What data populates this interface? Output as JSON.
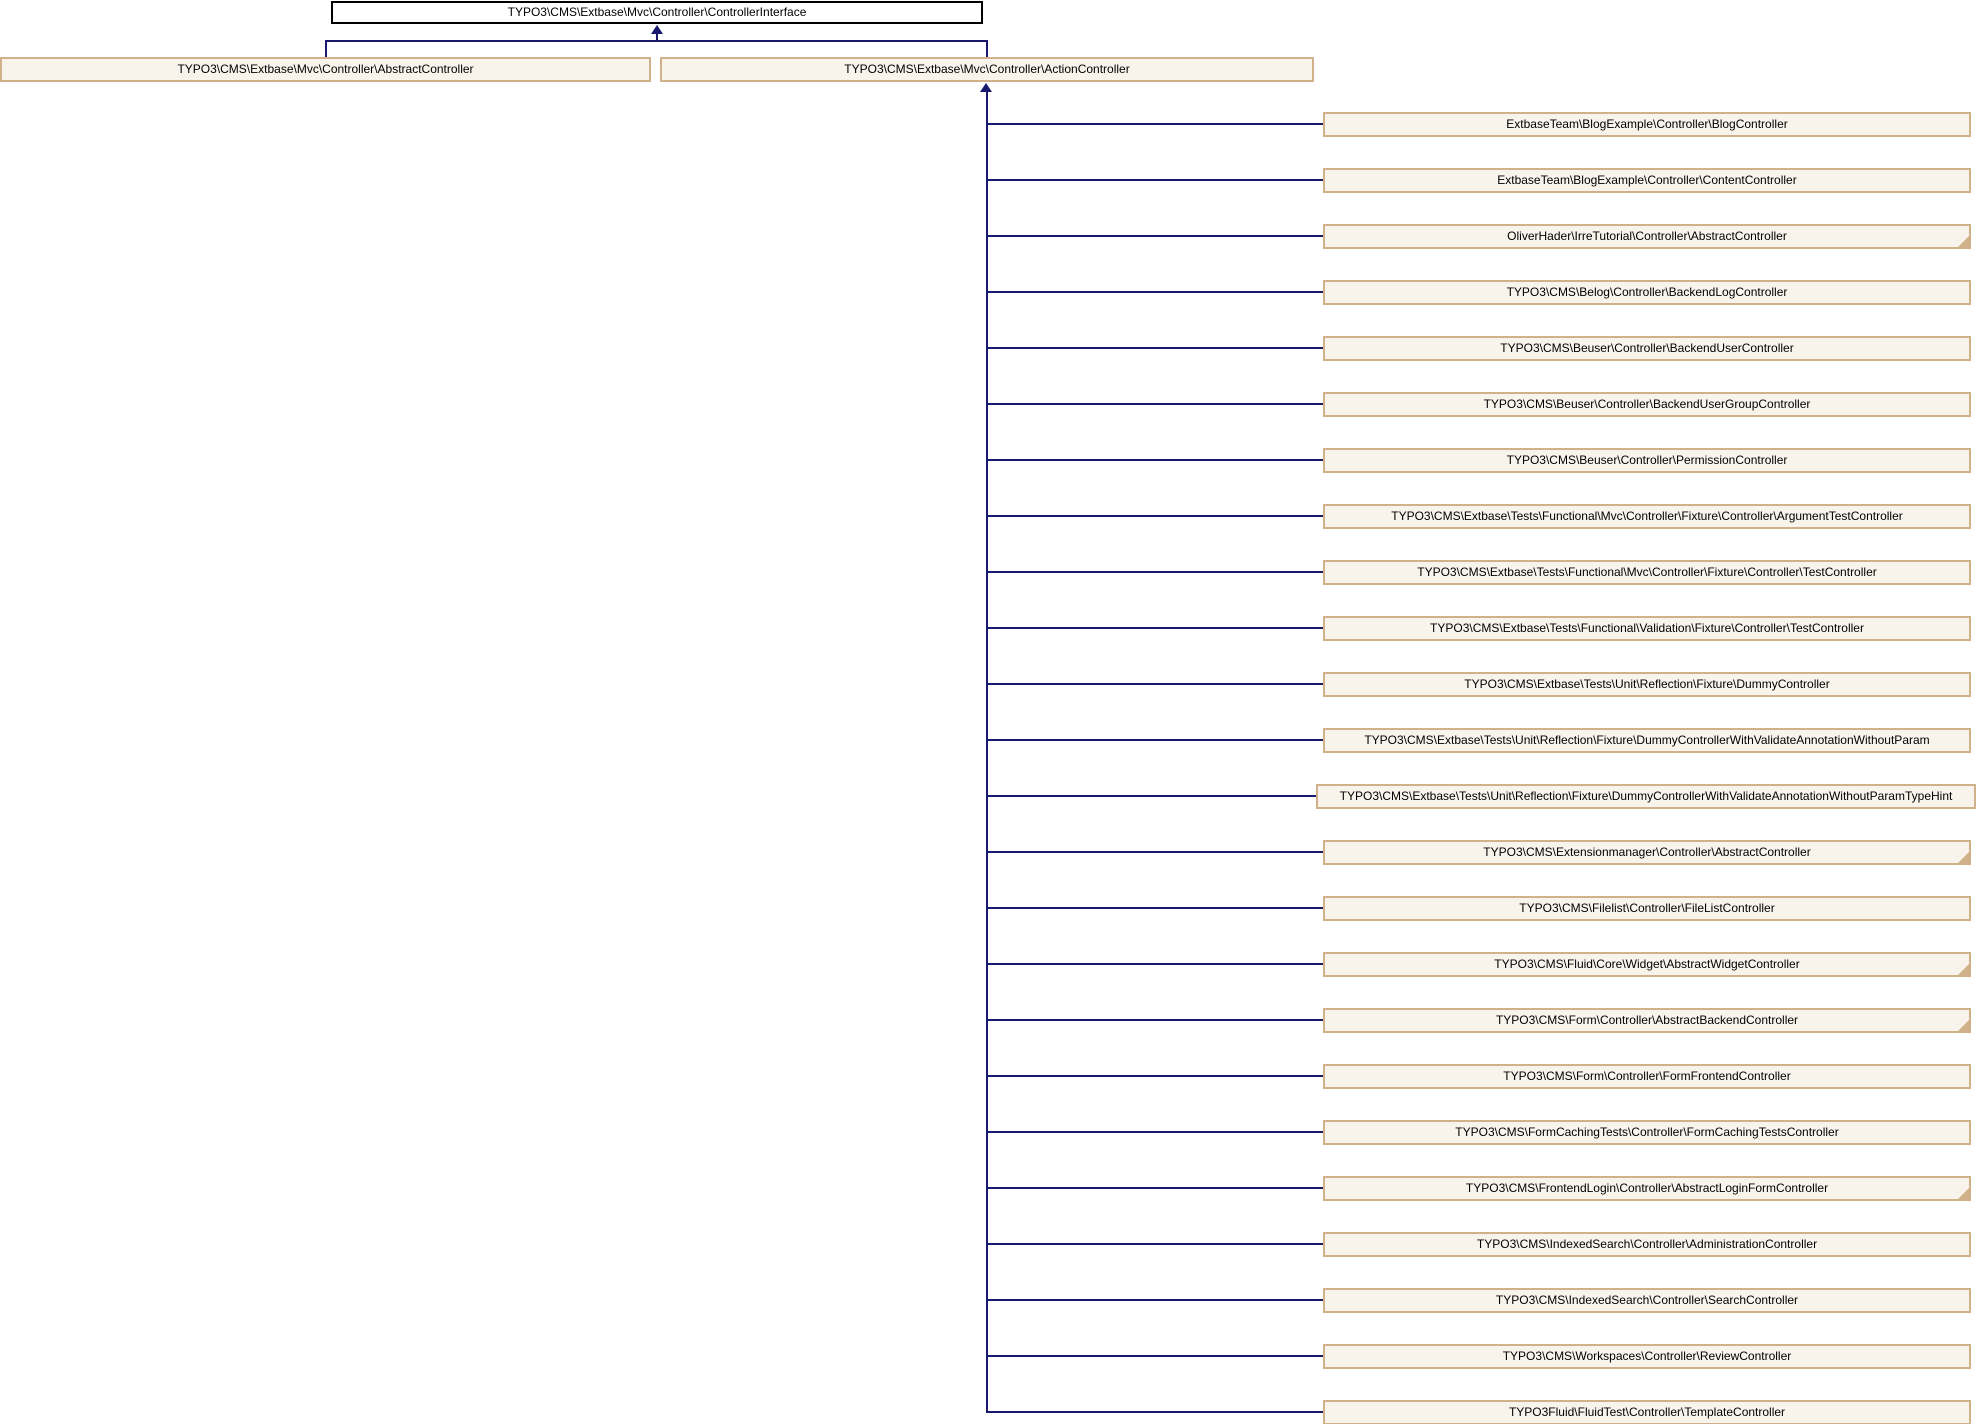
{
  "diagram": {
    "interface": {
      "label": "TYPO3\\CMS\\Extbase\\Mvc\\Controller\\ControllerInterface"
    },
    "abstract_controller": {
      "label": "TYPO3\\CMS\\Extbase\\Mvc\\Controller\\AbstractController"
    },
    "action_controller": {
      "label": "TYPO3\\CMS\\Extbase\\Mvc\\Controller\\ActionController"
    },
    "subclasses": [
      {
        "label": "ExtbaseTeam\\BlogExample\\Controller\\BlogController",
        "truncated": false
      },
      {
        "label": "ExtbaseTeam\\BlogExample\\Controller\\ContentController",
        "truncated": false
      },
      {
        "label": "OliverHader\\IrreTutorial\\Controller\\AbstractController",
        "truncated": true
      },
      {
        "label": "TYPO3\\CMS\\Belog\\Controller\\BackendLogController",
        "truncated": false
      },
      {
        "label": "TYPO3\\CMS\\Beuser\\Controller\\BackendUserController",
        "truncated": false
      },
      {
        "label": "TYPO3\\CMS\\Beuser\\Controller\\BackendUserGroupController",
        "truncated": false
      },
      {
        "label": "TYPO3\\CMS\\Beuser\\Controller\\PermissionController",
        "truncated": false
      },
      {
        "label": "TYPO3\\CMS\\Extbase\\Tests\\Functional\\Mvc\\Controller\\Fixture\\Controller\\ArgumentTestController",
        "truncated": false
      },
      {
        "label": "TYPO3\\CMS\\Extbase\\Tests\\Functional\\Mvc\\Controller\\Fixture\\Controller\\TestController",
        "truncated": false
      },
      {
        "label": "TYPO3\\CMS\\Extbase\\Tests\\Functional\\Validation\\Fixture\\Controller\\TestController",
        "truncated": false
      },
      {
        "label": "TYPO3\\CMS\\Extbase\\Tests\\Unit\\Reflection\\Fixture\\DummyController",
        "truncated": false
      },
      {
        "label": "TYPO3\\CMS\\Extbase\\Tests\\Unit\\Reflection\\Fixture\\DummyControllerWithValidateAnnotationWithoutParam",
        "truncated": false
      },
      {
        "label": "TYPO3\\CMS\\Extbase\\Tests\\Unit\\Reflection\\Fixture\\DummyControllerWithValidateAnnotationWithoutParamTypeHint",
        "truncated": false
      },
      {
        "label": "TYPO3\\CMS\\Extensionmanager\\Controller\\AbstractController",
        "truncated": true
      },
      {
        "label": "TYPO3\\CMS\\Filelist\\Controller\\FileListController",
        "truncated": false
      },
      {
        "label": "TYPO3\\CMS\\Fluid\\Core\\Widget\\AbstractWidgetController",
        "truncated": true
      },
      {
        "label": "TYPO3\\CMS\\Form\\Controller\\AbstractBackendController",
        "truncated": true
      },
      {
        "label": "TYPO3\\CMS\\Form\\Controller\\FormFrontendController",
        "truncated": false
      },
      {
        "label": "TYPO3\\CMS\\FormCachingTests\\Controller\\FormCachingTestsController",
        "truncated": false
      },
      {
        "label": "TYPO3\\CMS\\FrontendLogin\\Controller\\AbstractLoginFormController",
        "truncated": true
      },
      {
        "label": "TYPO3\\CMS\\IndexedSearch\\Controller\\AdministrationController",
        "truncated": false
      },
      {
        "label": "TYPO3\\CMS\\IndexedSearch\\Controller\\SearchController",
        "truncated": false
      },
      {
        "label": "TYPO3\\CMS\\Workspaces\\Controller\\ReviewController",
        "truncated": false
      },
      {
        "label": "TYPO3Fluid\\FluidTest\\Controller\\TemplateController",
        "truncated": false
      }
    ]
  },
  "colors": {
    "node_fill": "#f8f4eb",
    "node_border": "#d0b189",
    "root_fill": "#ffffff",
    "root_border": "#000000",
    "edge": "#191970",
    "text": "#000000"
  }
}
